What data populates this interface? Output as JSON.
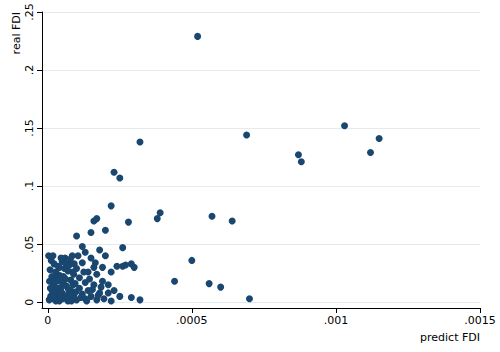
{
  "chart_data": {
    "type": "scatter",
    "x_label": "predict FDI",
    "y_label": "real FDI",
    "color": "#1a476f",
    "marker": "circle",
    "grid": true,
    "xlim": [
      -2e-05,
      0.0015
    ],
    "xticks": [
      0,
      {
        "value": 0.0005,
        "label": ".0005"
      },
      {
        "value": 0.001,
        "label": ".001"
      },
      {
        "value": 0.0015,
        "label": ".0015"
      }
    ],
    "ylim": [
      -0.005,
      0.25
    ],
    "yticks": [
      0,
      {
        "value": 0.05,
        "label": ".05"
      },
      {
        "value": 0.1,
        "label": ".1"
      },
      {
        "value": 0.15,
        "label": ".15"
      },
      {
        "value": 0.2,
        "label": ".2"
      },
      {
        "value": 0.25,
        "label": ".25"
      }
    ],
    "x": [
      0.00052,
      0.00103,
      0.00115,
      0.00069,
      0.00112,
      0.00087,
      0.00088,
      0.00032,
      0.00023,
      0.00025,
      0.00022,
      0.00039,
      0.00038,
      0.00057,
      0.00064,
      0.00017,
      0.00016,
      0.00015,
      0.0002,
      0.00028,
      0.0001,
      0.00026,
      0.0005,
      0.00044,
      0.00056,
      0.0006,
      0.0007,
      0.00012,
      0.00013,
      0.00018,
      0.0002,
      0.00024,
      0.00026,
      0.00029,
      0.0003,
      0.00027,
      0.00022,
      0.00016,
      0.00019,
      0.00021,
      0.00025,
      0.00029,
      0.00032,
      0.00023,
      5e-06,
      1e-05,
      1.5e-05,
      2e-05,
      2e-05,
      2.5e-05,
      3e-05,
      3e-05,
      3.5e-05,
      4e-05,
      4e-05,
      4.5e-05,
      5e-05,
      5e-05,
      5.5e-05,
      6e-05,
      6e-05,
      6.5e-05,
      7e-05,
      7e-05,
      7.5e-05,
      8e-05,
      8e-05,
      8.5e-05,
      9e-05,
      9e-05,
      9.5e-05,
      0.0001,
      0.0001,
      0.00011,
      0.00011,
      0.00012,
      0.00012,
      0.00013,
      0.00013,
      0.00014,
      0.00014,
      0.00015,
      0.00015,
      0.00016,
      0.00017,
      0.00017,
      0.00018,
      0.00019,
      8e-06,
      1.2e-05,
      1.8e-05,
      2.2e-05,
      2.8e-05,
      3.2e-05,
      3.8e-05,
      4.2e-05,
      4.8e-05,
      5.2e-05,
      5.8e-05,
      6.2e-05,
      6.8e-05,
      7.2e-05,
      7.8e-05,
      8.2e-05,
      8.8e-05,
      9.2e-05,
      9.8e-05,
      3e-06,
      6e-06,
      9e-06,
      1.4e-05,
      1.7e-05,
      2.4e-05,
      2.7e-05,
      3.4e-05,
      3.6e-05,
      4.4e-05,
      4.6e-05,
      5.4e-05,
      6.4e-05,
      7.4e-05,
      8.6e-05,
      0.000105,
      0.000115,
      0.000125,
      0.000135,
      0.000145,
      0.000155,
      0.000165,
      0.000175,
      0.000185,
      0.000195,
      0.00021,
      0.00022
    ],
    "values": [
      0.229,
      0.152,
      0.141,
      0.144,
      0.129,
      0.127,
      0.121,
      0.138,
      0.112,
      0.107,
      0.083,
      0.077,
      0.072,
      0.074,
      0.07,
      0.072,
      0.07,
      0.06,
      0.062,
      0.069,
      0.057,
      0.047,
      0.036,
      0.018,
      0.016,
      0.013,
      0.003,
      0.048,
      0.043,
      0.045,
      0.04,
      0.031,
      0.031,
      0.033,
      0.03,
      0.032,
      0.026,
      0.03,
      0.018,
      0.015,
      0.005,
      0.004,
      0.002,
      0.01,
      0.002,
      0.005,
      0.01,
      0.003,
      0.015,
      0.02,
      0.007,
      0.025,
      0.012,
      0.03,
      0.001,
      0.018,
      0.008,
      0.035,
      0.022,
      0.004,
      0.038,
      0.014,
      0.027,
      0.001,
      0.032,
      0.01,
      0.019,
      0.04,
      0.006,
      0.024,
      0.016,
      0.002,
      0.029,
      0.012,
      0.021,
      0.007,
      0.034,
      0.003,
      0.017,
      0.026,
      0.01,
      0.005,
      0.038,
      0.015,
      0.002,
      0.024,
      0.008,
      0.03,
      0.028,
      0.036,
      0.04,
      0.033,
      0.001,
      0.018,
      0.009,
      0.023,
      0.013,
      0.003,
      0.029,
      0.02,
      0.006,
      0.011,
      0.037,
      0.001,
      0.015,
      0.033,
      0.009,
      0.04,
      0.018,
      0.012,
      0.022,
      0.007,
      0.01,
      0.026,
      0.004,
      0.031,
      0.005,
      0.038,
      0.016,
      0.033,
      0.004,
      0.026,
      0.04,
      0.004,
      0.026,
      0.001,
      0.02,
      0.011,
      0.034,
      0.006,
      0.013,
      0.003,
      0.008,
      0.001
    ]
  }
}
